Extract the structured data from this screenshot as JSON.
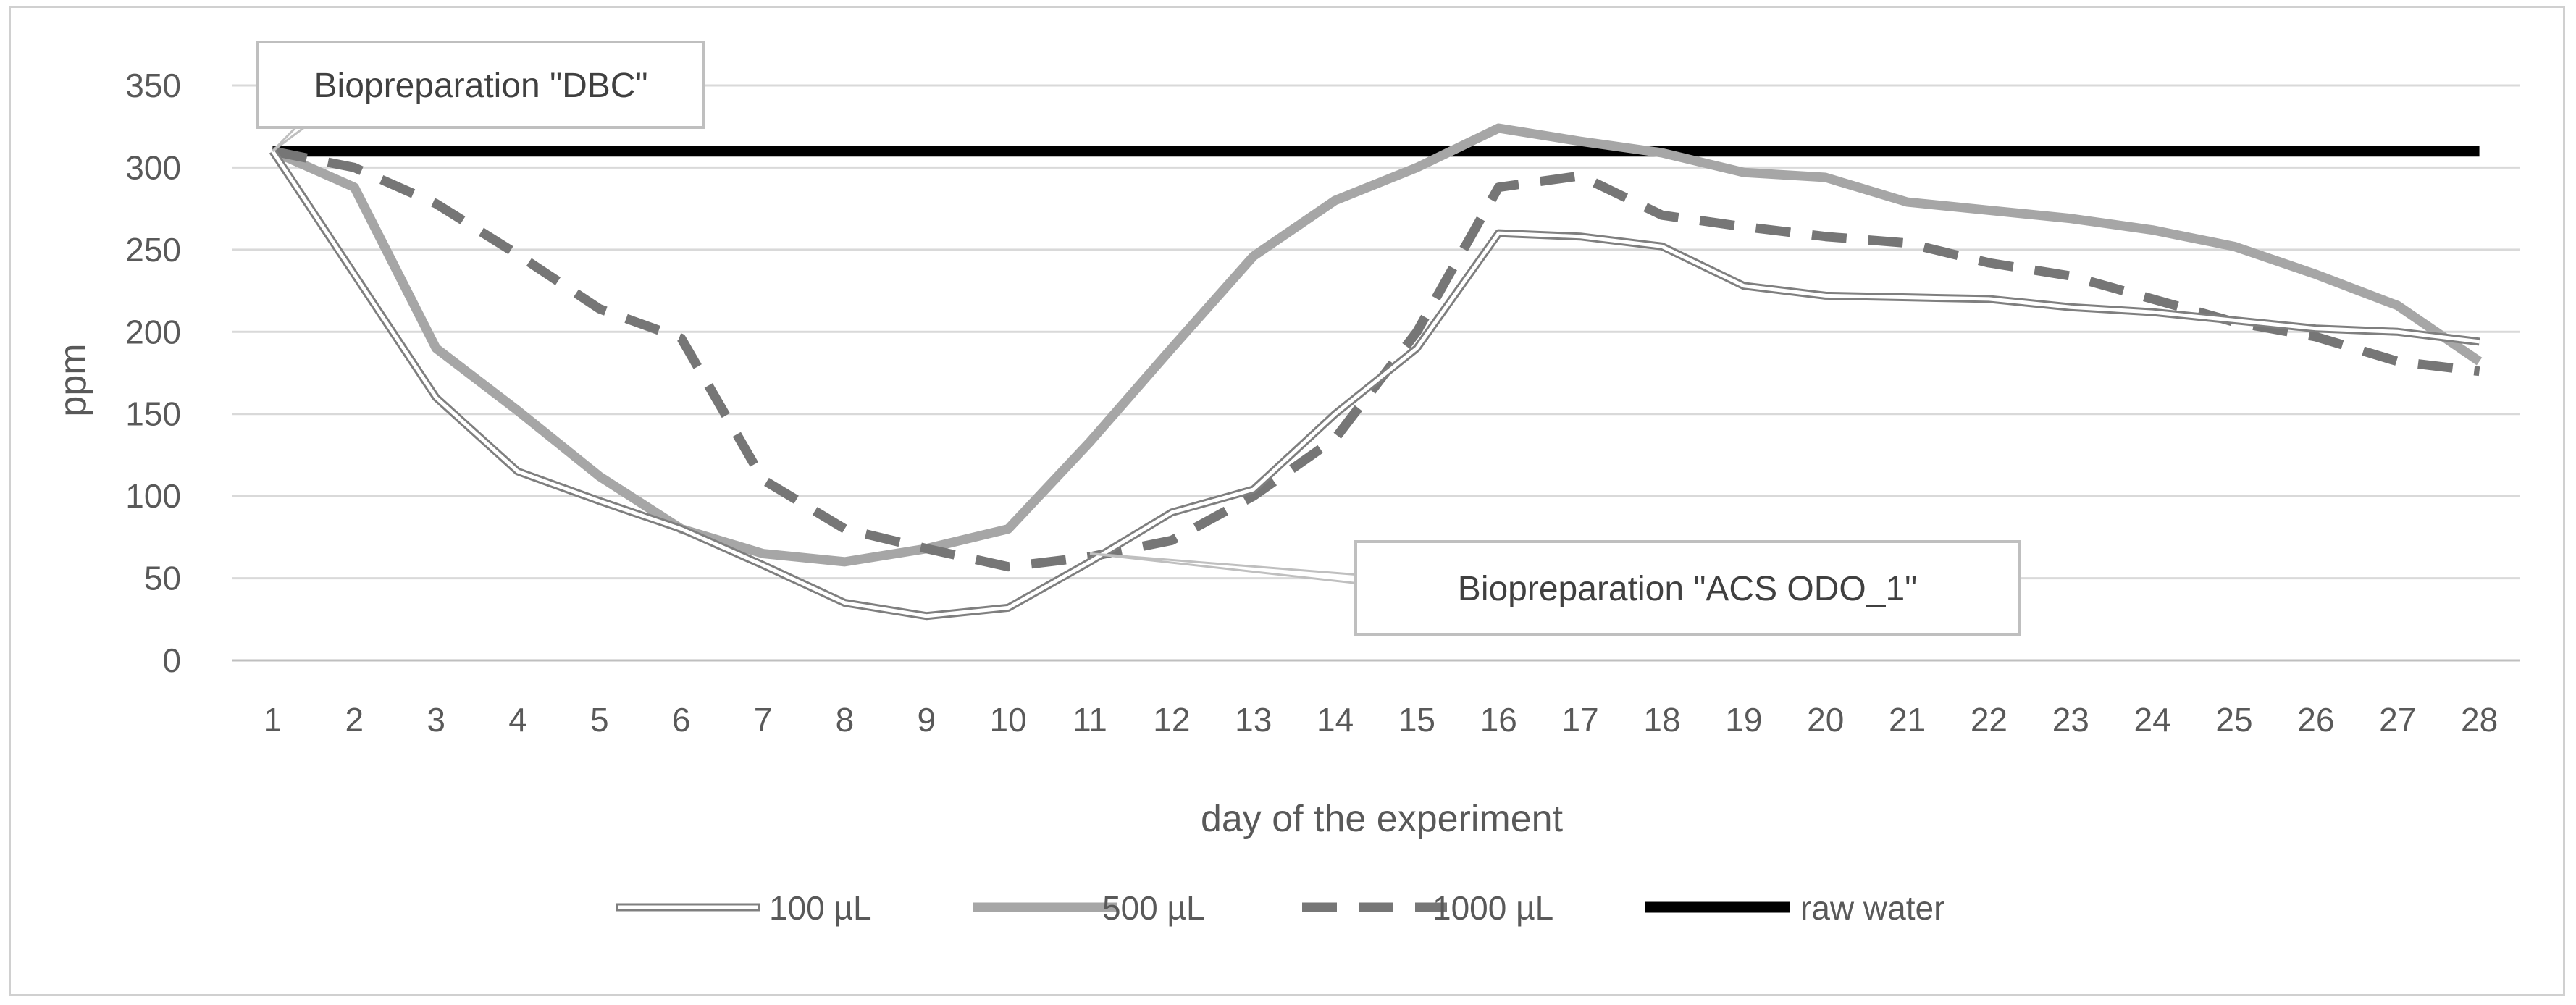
{
  "chart_data": {
    "type": "line",
    "title": "",
    "xlabel": "day of the experiment",
    "ylabel": "ppm",
    "ylim": [
      0,
      350
    ],
    "yticks": [
      0,
      50,
      100,
      150,
      200,
      250,
      300,
      350
    ],
    "grid": true,
    "legend_position": "bottom",
    "categories": [
      "1",
      "2",
      "3",
      "4",
      "5",
      "6",
      "7",
      "8",
      "9",
      "10",
      "11",
      "12",
      "13",
      "14",
      "15",
      "16",
      "17",
      "18",
      "19",
      "20",
      "21",
      "22",
      "23",
      "24",
      "25",
      "26",
      "27",
      "28"
    ],
    "series": [
      {
        "name": "100 µL",
        "style": "double",
        "color": "#7f7f7f",
        "values": [
          310,
          235,
          160,
          115,
          97,
          80,
          58,
          35,
          27,
          32,
          60,
          90,
          104,
          150,
          190,
          260,
          258,
          252,
          228,
          222,
          221,
          220,
          215,
          212,
          207,
          202,
          200,
          194
        ]
      },
      {
        "name": "500 µL",
        "style": "solid",
        "color": "#a6a6a6",
        "values": [
          310,
          288,
          190,
          152,
          112,
          80,
          65,
          60,
          68,
          80,
          133,
          190,
          246,
          280,
          300,
          324,
          316,
          309,
          297,
          294,
          279,
          274,
          269,
          262,
          252,
          235,
          216,
          182
        ]
      },
      {
        "name": "1000 µL",
        "style": "dashed",
        "color": "#767676",
        "values": [
          310,
          300,
          278,
          247,
          214,
          196,
          110,
          80,
          68,
          57,
          63,
          73,
          100,
          135,
          200,
          288,
          295,
          271,
          264,
          258,
          254,
          242,
          234,
          220,
          206,
          197,
          182,
          176
        ]
      },
      {
        "name": "raw water",
        "style": "solid",
        "color": "#000000",
        "values": [
          310,
          310,
          310,
          310,
          310,
          310,
          310,
          310,
          310,
          310,
          310,
          310,
          310,
          310,
          310,
          310,
          310,
          310,
          310,
          310,
          310,
          310,
          310,
          310,
          310,
          310,
          310,
          310
        ]
      }
    ],
    "annotations": [
      {
        "text": "Biopreparation \"DBC\"",
        "points_to_day": "1",
        "points_to_value": 310
      },
      {
        "text": "Biopreparation \"ACS ODO_1\"",
        "points_to_day": "11",
        "points_to_value": 65
      }
    ]
  }
}
